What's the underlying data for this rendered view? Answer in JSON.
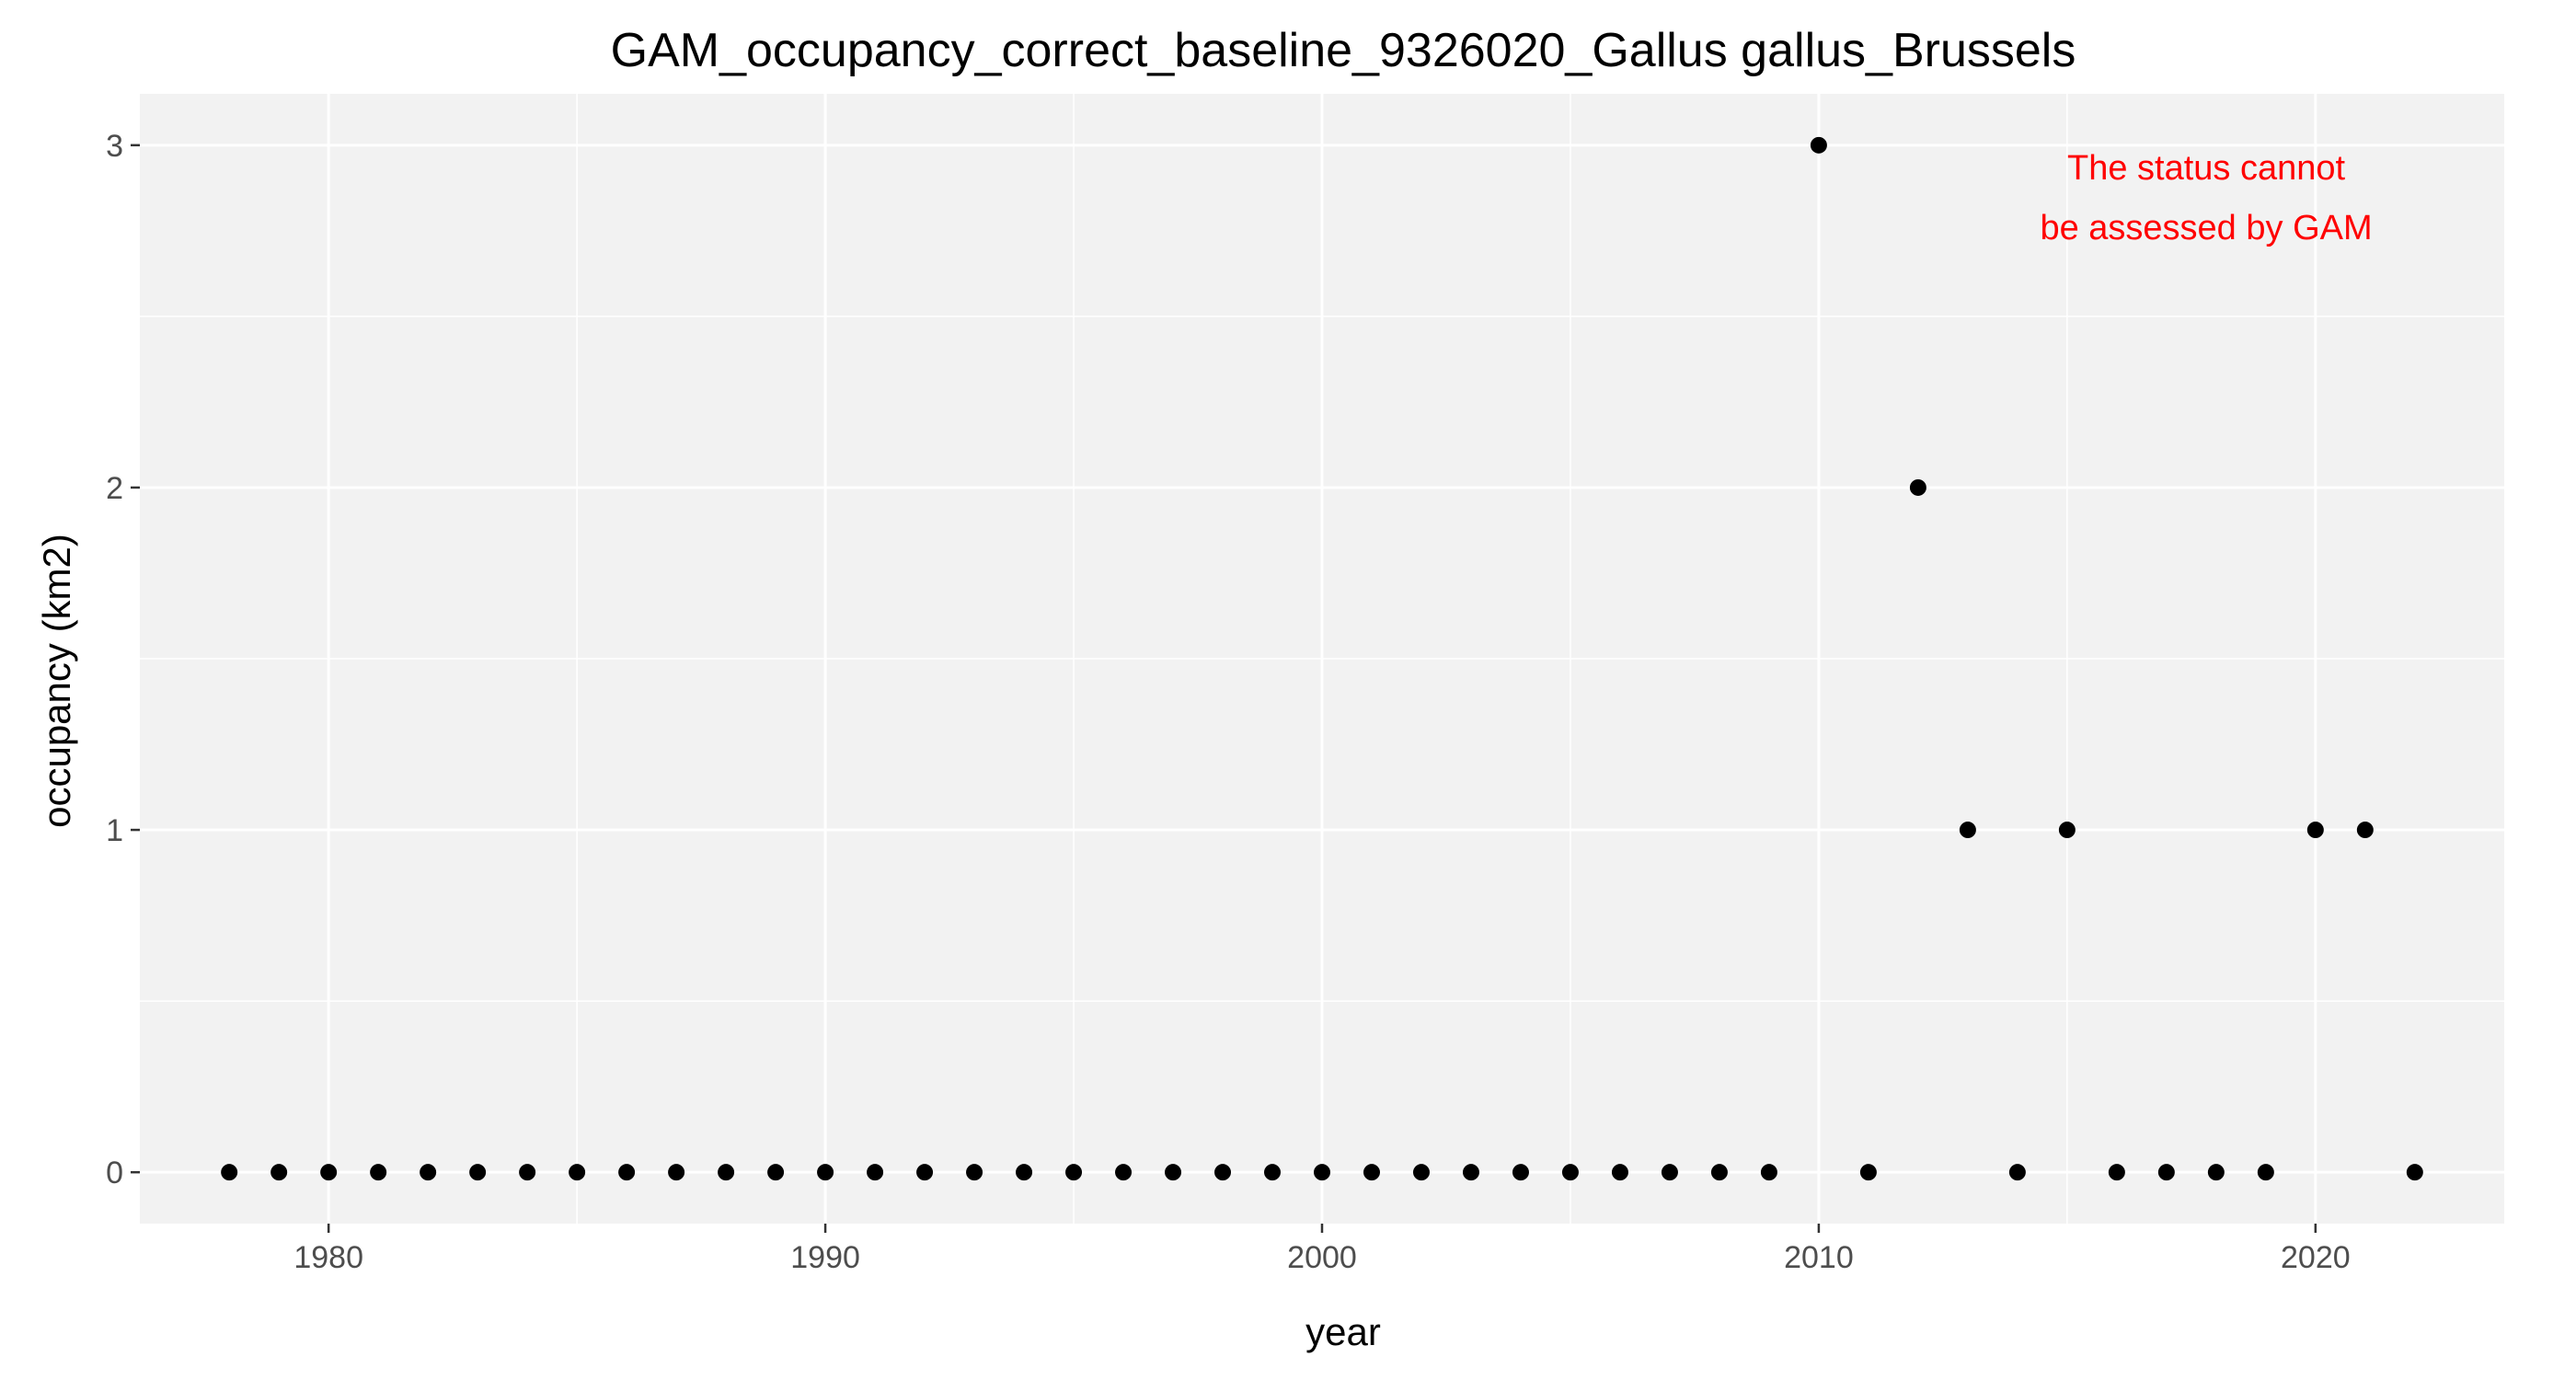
{
  "chart_data": {
    "type": "scatter",
    "title": "GAM_occupancy_correct_baseline_9326020_Gallus gallus_Brussels",
    "xlabel": "year",
    "ylabel": "occupancy (km2)",
    "xlim": [
      1976.2,
      2023.8
    ],
    "ylim": [
      -0.15,
      3.15
    ],
    "x_ticks": [
      1980,
      1990,
      2000,
      2010,
      2020
    ],
    "y_ticks": [
      0,
      1,
      2,
      3
    ],
    "grid": true,
    "legend": "none",
    "colors": {
      "panel": "#f2f2f2",
      "grid": "#ffffff",
      "point": "#000000",
      "annotation": "#ff0000"
    },
    "annotation": {
      "lines": [
        "The status cannot",
        "be assessed by GAM"
      ],
      "x": 2017.8,
      "y": 2.9
    },
    "series": [
      {
        "x": [
          1978,
          1979,
          1980,
          1981,
          1982,
          1983,
          1984,
          1985,
          1986,
          1987,
          1988,
          1989,
          1990,
          1991,
          1992,
          1993,
          1994,
          1995,
          1996,
          1997,
          1998,
          1999,
          2000,
          2001,
          2002,
          2003,
          2004,
          2005,
          2006,
          2007,
          2008,
          2009,
          2010,
          2011,
          2012,
          2013,
          2014,
          2015,
          2016,
          2017,
          2018,
          2019,
          2020,
          2021,
          2022
        ],
        "values": [
          0,
          0,
          0,
          0,
          0,
          0,
          0,
          0,
          0,
          0,
          0,
          0,
          0,
          0,
          0,
          0,
          0,
          0,
          0,
          0,
          0,
          0,
          0,
          0,
          0,
          0,
          0,
          0,
          0,
          0,
          0,
          0,
          3,
          0,
          2,
          1,
          0,
          1,
          0,
          0,
          0,
          0,
          1,
          1,
          0
        ]
      }
    ]
  }
}
